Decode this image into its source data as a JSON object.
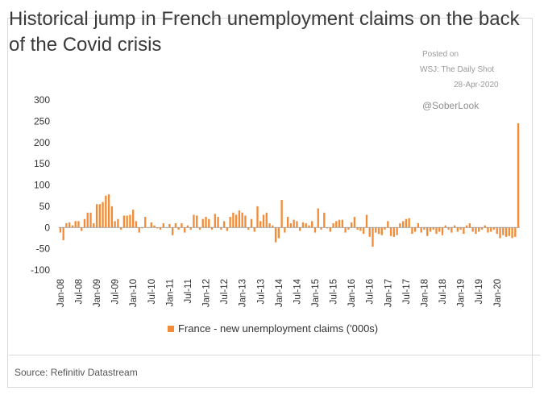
{
  "header": {
    "title": "Historical jump in French unemployment claims on the back of the Covid crisis"
  },
  "attribution": {
    "posted_on": "Posted on",
    "publisher": "WSJ: The Daily Shot",
    "date": "28-Apr-2020",
    "handle": "@SoberLook"
  },
  "footer": {
    "source": "Source: Refinitiv Datastream"
  },
  "colors": {
    "bar": "#f28c38",
    "axis": "#333333"
  },
  "chart_data": {
    "type": "bar",
    "title": "Historical jump in French unemployment claims on the back of the Covid crisis",
    "xlabel": "",
    "ylabel": "",
    "ylim": [
      -100,
      300
    ],
    "yticks": [
      300,
      250,
      200,
      150,
      100,
      50,
      0,
      -50,
      -100
    ],
    "grid": false,
    "legend": "bottom",
    "xticks": [
      "Jan-08",
      "Jul-08",
      "Jan-09",
      "Jul-09",
      "Jan-10",
      "Jul-10",
      "Jan-11",
      "Jul-11",
      "Jan-12",
      "Jul-12",
      "Jan-13",
      "Jul-13",
      "Jan-14",
      "Jul-14",
      "Jan-15",
      "Jul-15",
      "Jan-16",
      "Jul-16",
      "Jan-17",
      "Jul-17",
      "Jan-18",
      "Jul-18",
      "Jan-19",
      "Jul-19",
      "Jan-20"
    ],
    "series": [
      {
        "name": "France - new unemployment claims ('000s)",
        "start": "Jan-08",
        "frequency": "monthly",
        "values": [
          -12,
          -30,
          10,
          12,
          5,
          15,
          15,
          -8,
          20,
          35,
          35,
          10,
          55,
          55,
          60,
          75,
          78,
          50,
          15,
          20,
          -5,
          28,
          28,
          30,
          42,
          15,
          -12,
          -2,
          25,
          0,
          12,
          5,
          -2,
          -5,
          10,
          0,
          8,
          -18,
          10,
          -5,
          10,
          -12,
          5,
          -5,
          30,
          28,
          -5,
          20,
          25,
          20,
          -5,
          32,
          25,
          -5,
          15,
          -8,
          25,
          35,
          30,
          40,
          35,
          28,
          -5,
          20,
          -10,
          50,
          15,
          30,
          35,
          10,
          5,
          -35,
          -25,
          65,
          -12,
          25,
          10,
          18,
          15,
          -8,
          12,
          10,
          5,
          15,
          -12,
          45,
          -5,
          35,
          -2,
          -10,
          10,
          15,
          18,
          18,
          -12,
          -5,
          12,
          25,
          -5,
          -8,
          -15,
          30,
          -22,
          -45,
          -12,
          -15,
          -18,
          -5,
          15,
          -20,
          -22,
          -18,
          10,
          15,
          20,
          22,
          -15,
          -10,
          10,
          -12,
          -5,
          -20,
          -10,
          -5,
          -15,
          -10,
          -18,
          5,
          -5,
          -12,
          5,
          -10,
          -5,
          -15,
          5,
          10,
          -10,
          -15,
          -10,
          -5,
          5,
          -12,
          -10,
          -5,
          -15,
          -25,
          -18,
          -22,
          -20,
          -25,
          -22,
          245
        ]
      }
    ]
  }
}
